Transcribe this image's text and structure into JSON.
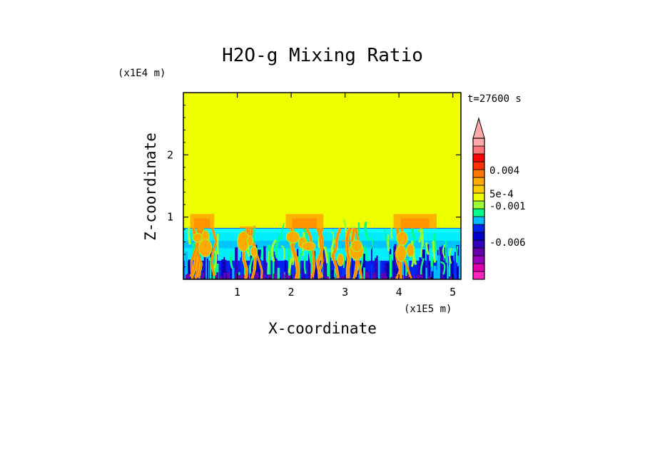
{
  "chart_data": {
    "type": "heatmap",
    "title": "H2O-g Mixing Ratio",
    "xlabel": "X-coordinate",
    "ylabel": "Z-coordinate",
    "x_multiplier": "(x1E5 m)",
    "y_multiplier": "(x1E4 m)",
    "time_label": "t=27600 s",
    "xlim": [
      0,
      5.15
    ],
    "ylim": [
      0,
      3.0
    ],
    "x_ticks": [
      1,
      2,
      3,
      4,
      5
    ],
    "x_tick_labels": [
      "1",
      "2",
      "3",
      "4",
      "5"
    ],
    "y_ticks": [
      1,
      2
    ],
    "y_tick_labels": [
      "1",
      "2"
    ],
    "colorbar": {
      "colors": [
        "#ff22bb",
        "#dd00aa",
        "#9900bb",
        "#6600aa",
        "#3300bb",
        "#0000cc",
        "#0022ee",
        "#00bbff",
        "#00ff88",
        "#99ff33",
        "#eeff00",
        "#ffcc00",
        "#ffaa00",
        "#ff7700",
        "#ff3300",
        "#ff0000",
        "#ff7777",
        "#ffaaaa"
      ],
      "tick_labels": [
        "0.004",
        "5e-4",
        "-0.001",
        "-0.006"
      ],
      "tick_values": [
        0.004,
        0.0005,
        -0.001,
        -0.006
      ],
      "extend": "max"
    },
    "regions": {
      "background": {
        "z_range": [
          0.82,
          3.0
        ],
        "value_color": "#eeff00"
      },
      "inversion_layer": {
        "z_range": [
          0.76,
          0.82
        ],
        "value_color": "#00ffff"
      },
      "boundary_layer": {
        "z_range": [
          0.3,
          0.76
        ],
        "value_color": "#00eeff"
      },
      "surface_layer": {
        "z_range": [
          0.0,
          0.3
        ],
        "value_color": "#0022ee"
      }
    },
    "plumes": [
      {
        "x": 0.35,
        "top": 1.05,
        "width": 0.45
      },
      {
        "x": 1.2,
        "top": 0.85,
        "width": 0.3
      },
      {
        "x": 2.25,
        "top": 1.05,
        "width": 0.7
      },
      {
        "x": 3.05,
        "top": 0.7,
        "width": 0.35
      },
      {
        "x": 4.3,
        "top": 1.05,
        "width": 0.8
      }
    ]
  }
}
